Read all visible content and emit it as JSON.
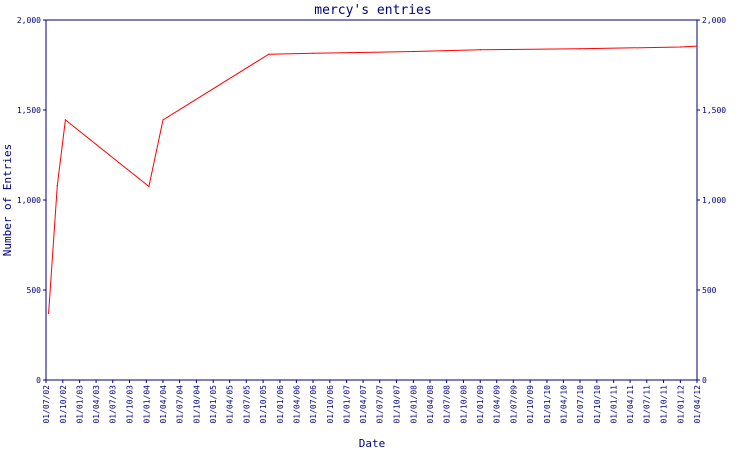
{
  "chart_data": {
    "type": "line",
    "title": "mercy's entries",
    "xlabel": "Date",
    "ylabel": "Number of Entries",
    "ylim": [
      0,
      2000
    ],
    "y_ticks": [
      0,
      500,
      1000,
      1500,
      2000
    ],
    "y_tick_labels": [
      "0",
      "500",
      "1,000",
      "1,500",
      "2,000"
    ],
    "x_ticks": [
      "01/07/02",
      "01/10/02",
      "01/01/03",
      "01/04/03",
      "01/07/03",
      "01/10/03",
      "01/01/04",
      "01/04/04",
      "01/07/04",
      "01/10/04",
      "01/01/05",
      "01/04/05",
      "01/07/05",
      "01/10/05",
      "01/01/06",
      "01/04/06",
      "01/07/06",
      "01/10/06",
      "01/01/07",
      "01/04/07",
      "01/07/07",
      "01/10/07",
      "01/01/08",
      "01/04/08",
      "01/07/08",
      "01/10/08",
      "01/01/09",
      "01/04/09",
      "01/07/09",
      "01/10/09",
      "01/01/10",
      "01/04/10",
      "01/07/10",
      "01/10/10",
      "01/01/11",
      "01/04/11",
      "01/07/11",
      "01/10/11",
      "01/01/12",
      "01/04/12"
    ],
    "grid": false,
    "line_color": "#ff0000",
    "axis_color": "#000080",
    "series": [
      {
        "x": [
          "2002-07-15",
          "2002-09-01",
          "2002-10-15",
          "2004-01-15",
          "2004-04-01",
          "2005-11-01",
          "2006-07-01",
          "2008-01-01",
          "2009-01-01",
          "2010-07-01",
          "2012-01-01",
          "2012-04-01"
        ],
        "values": [
          370,
          1080,
          1445,
          1075,
          1445,
          1810,
          1815,
          1825,
          1835,
          1840,
          1850,
          1855
        ]
      }
    ]
  }
}
